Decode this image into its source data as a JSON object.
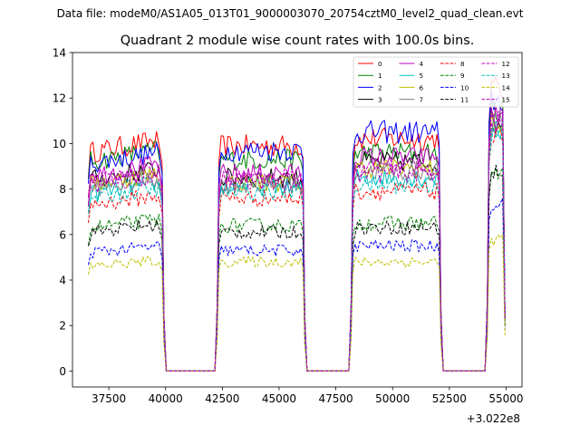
{
  "chart_data": {
    "type": "line",
    "suptitle": "Data file: modeM0/AS1A05_013T01_9000003070_20754cztM0_level2_quad_clean.evt",
    "title": "Quadrant 2 module wise count rates with 100.0s bins.",
    "xlabel": "",
    "ylabel": "",
    "x_offset_label": "+3.022e8",
    "xlim": [
      35900,
      55700
    ],
    "ylim": [
      -0.7,
      14
    ],
    "xticks": [
      37500,
      40000,
      42500,
      45000,
      47500,
      50000,
      52500,
      55000
    ],
    "xtick_labels": [
      "37500",
      "40000",
      "42500",
      "45000",
      "47500",
      "50000",
      "52500",
      "55000"
    ],
    "yticks": [
      0,
      2,
      4,
      6,
      8,
      10,
      12,
      14
    ],
    "ytick_labels": [
      "0",
      "2",
      "4",
      "6",
      "8",
      "10",
      "12",
      "14"
    ],
    "legend_position": "upper-right",
    "segments": [
      {
        "start": 36600,
        "end": 39850
      },
      {
        "start": 42350,
        "end": 46050
      },
      {
        "start": 48250,
        "end": 52050
      },
      {
        "start": 54250,
        "end": 54950
      }
    ],
    "gaps": [
      {
        "from": 39850,
        "to": 42350
      },
      {
        "from": 46050,
        "to": 48250
      },
      {
        "from": 52050,
        "to": 54250
      }
    ],
    "series": [
      {
        "name": "0",
        "color": "#ff0000",
        "dashed": false,
        "levels": [
          9.6,
          9.9,
          10.2,
          12.4
        ]
      },
      {
        "name": "1",
        "color": "#008000",
        "dashed": false,
        "levels": [
          9.2,
          9.3,
          9.6,
          11.5
        ]
      },
      {
        "name": "2",
        "color": "#0000ff",
        "dashed": false,
        "levels": [
          9.1,
          9.7,
          10.5,
          11.9
        ]
      },
      {
        "name": "3",
        "color": "#000000",
        "dashed": false,
        "levels": [
          8.4,
          8.5,
          9.2,
          11.0
        ]
      },
      {
        "name": "4",
        "color": "#bf00bf",
        "dashed": false,
        "levels": [
          8.6,
          8.7,
          9.4,
          11.2
        ]
      },
      {
        "name": "5",
        "color": "#00bfbf",
        "dashed": false,
        "levels": [
          7.8,
          8.1,
          8.5,
          10.6
        ]
      },
      {
        "name": "6",
        "color": "#bfbf00",
        "dashed": false,
        "levels": [
          8.2,
          8.3,
          8.9,
          10.8
        ]
      },
      {
        "name": "7",
        "color": "#808080",
        "dashed": false,
        "levels": [
          8.0,
          8.2,
          8.8,
          10.7
        ]
      },
      {
        "name": "8",
        "color": "#ff0000",
        "dashed": true,
        "levels": [
          7.3,
          7.6,
          7.9,
          10.2
        ]
      },
      {
        "name": "9",
        "color": "#008000",
        "dashed": true,
        "levels": [
          6.3,
          6.4,
          6.5,
          8.6
        ]
      },
      {
        "name": "10",
        "color": "#0000ff",
        "dashed": true,
        "levels": [
          5.2,
          5.3,
          5.5,
          7.4
        ]
      },
      {
        "name": "11",
        "color": "#000000",
        "dashed": true,
        "levels": [
          6.1,
          6.1,
          6.3,
          8.7
        ]
      },
      {
        "name": "12",
        "color": "#bf00bf",
        "dashed": true,
        "levels": [
          8.1,
          8.3,
          8.7,
          10.9
        ]
      },
      {
        "name": "13",
        "color": "#00bfbf",
        "dashed": true,
        "levels": [
          7.6,
          7.9,
          8.2,
          10.5
        ]
      },
      {
        "name": "14",
        "color": "#bfbf00",
        "dashed": true,
        "levels": [
          4.6,
          4.8,
          4.8,
          5.8
        ]
      },
      {
        "name": "15",
        "color": "#bf00bf",
        "dashed": true,
        "levels": [
          8.3,
          8.5,
          8.9,
          11.0
        ]
      }
    ]
  }
}
